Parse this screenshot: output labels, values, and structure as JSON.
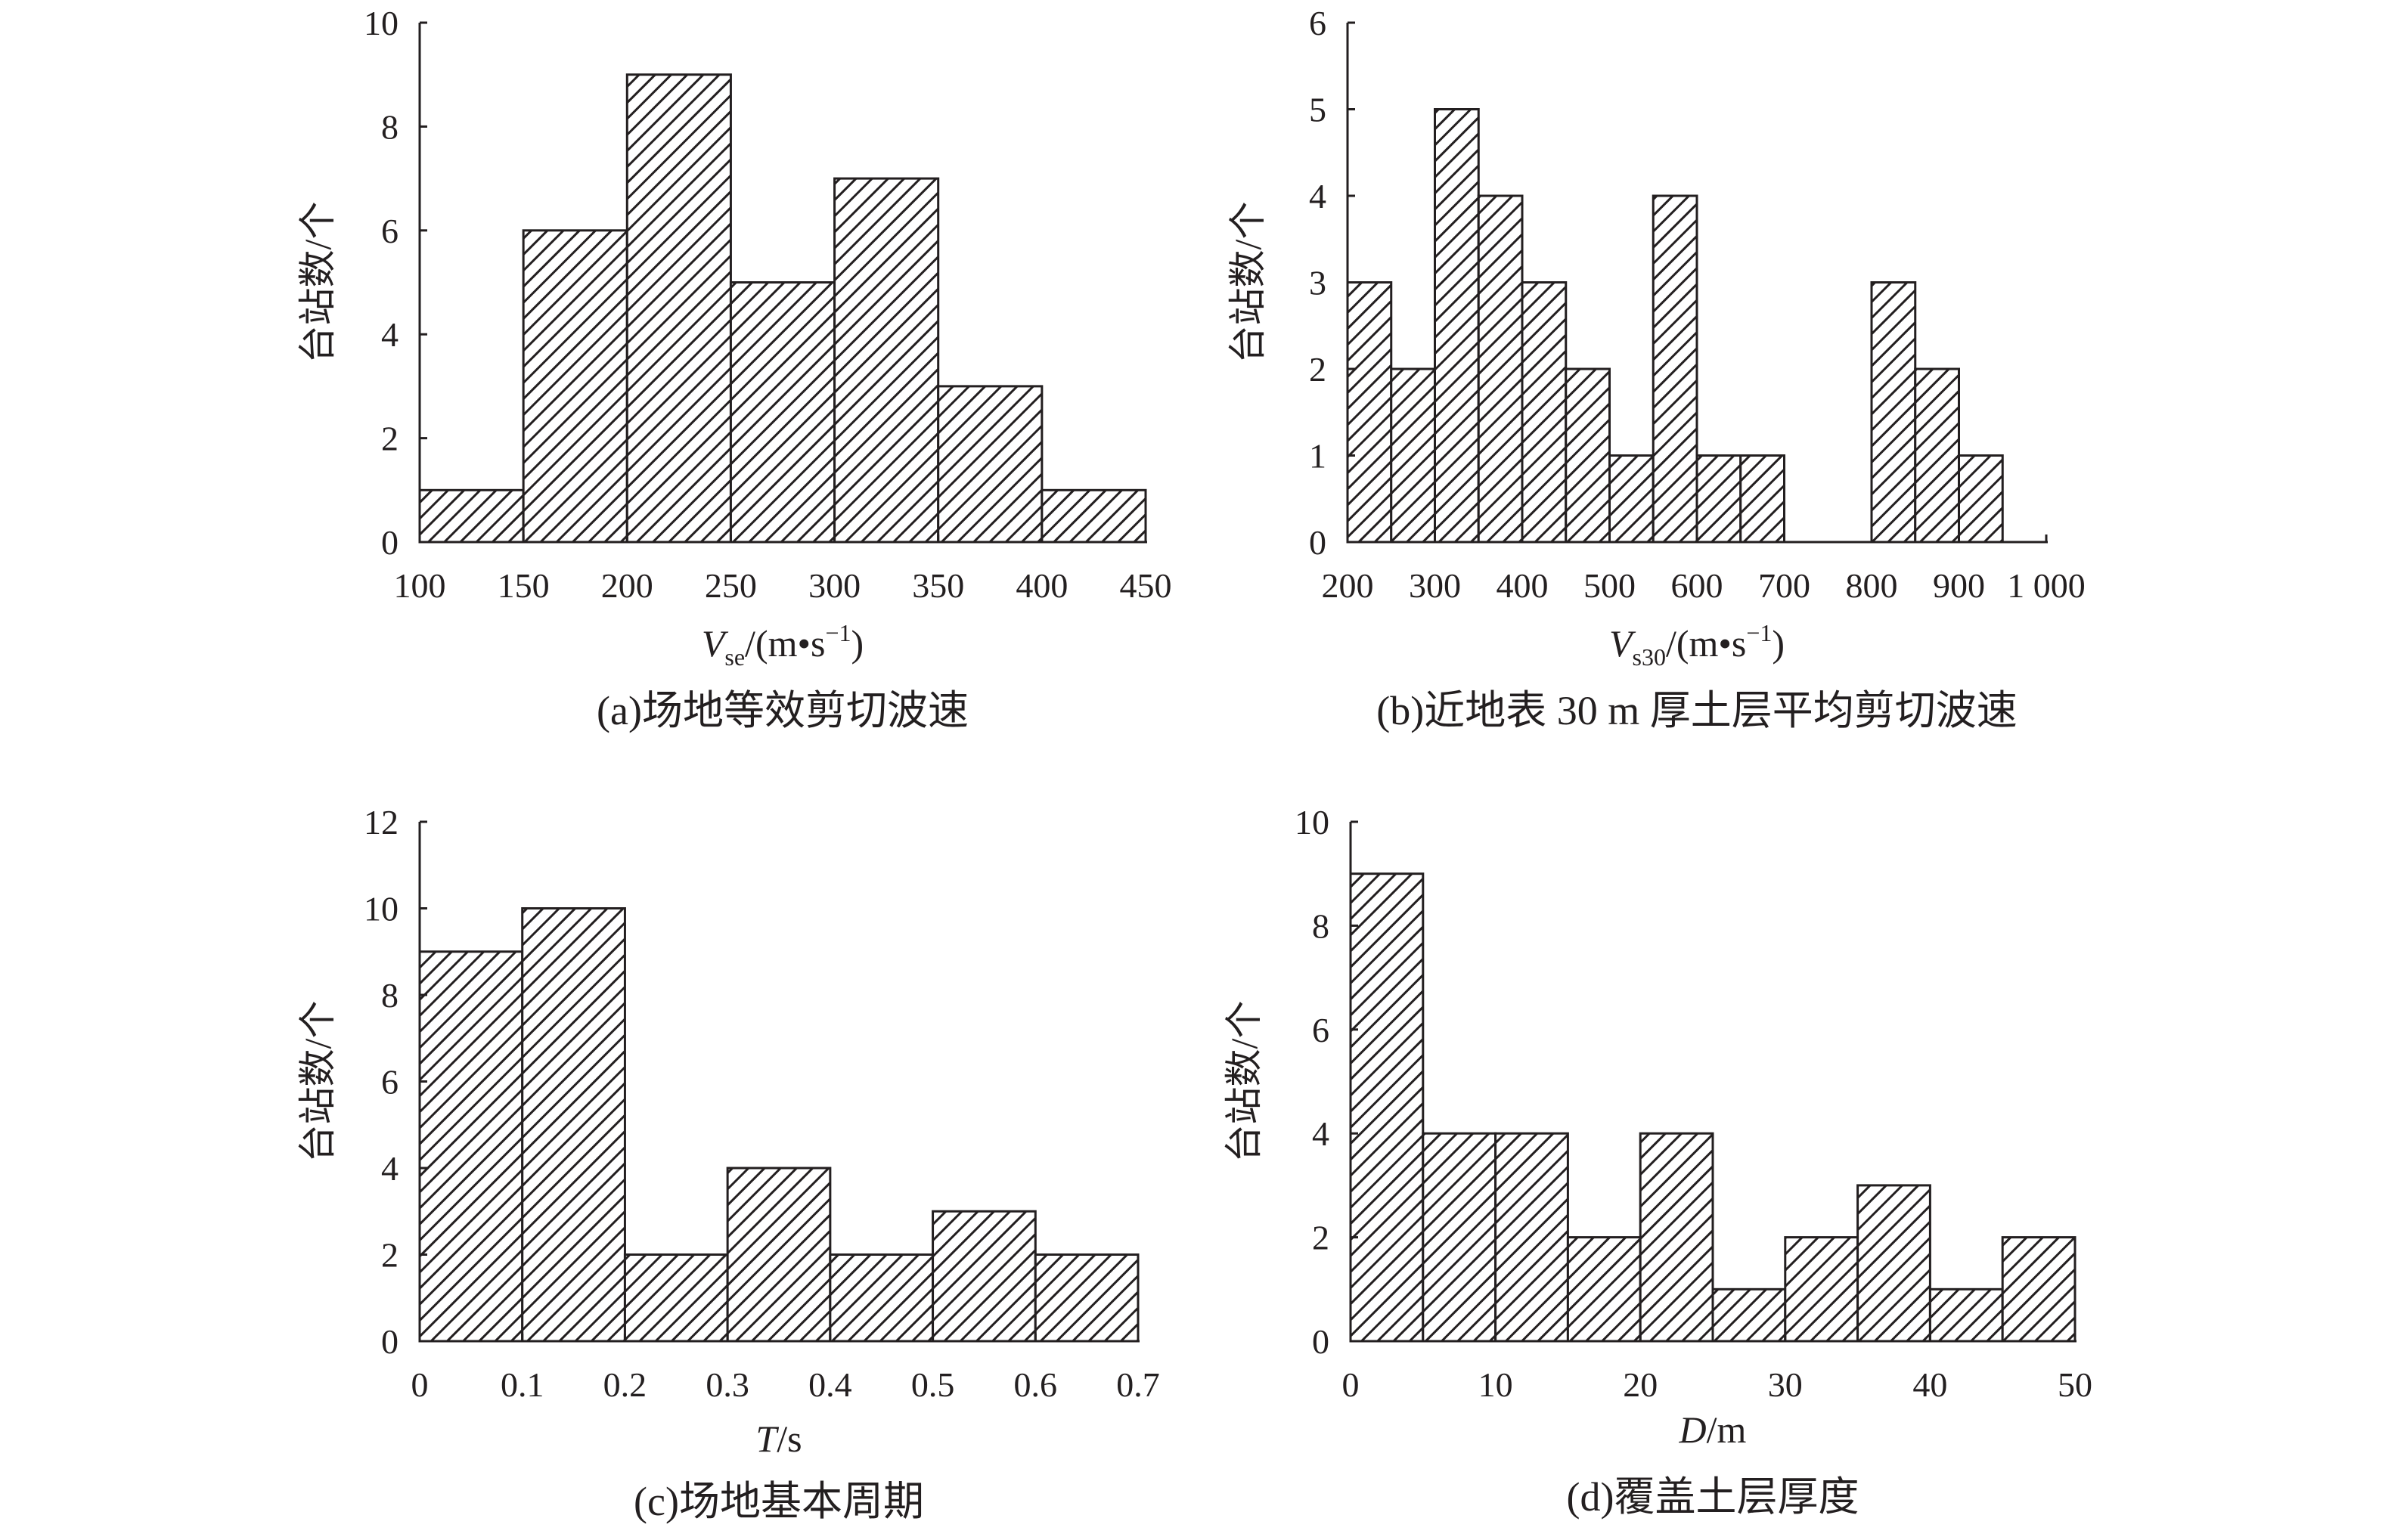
{
  "colors": {
    "ink": "#231f20",
    "background": "#ffffff"
  },
  "chart_data": [
    {
      "type": "bar",
      "title": "(a)场地等效剪切波速",
      "ylabel": "台站数/个",
      "xlabel": {
        "symbol": "V",
        "sub": "se",
        "text": "/(m•s",
        "sup": "−1",
        "end": ")"
      },
      "bin_edges": [
        100,
        150,
        200,
        250,
        300,
        350,
        400,
        450
      ],
      "values": [
        1,
        6,
        9,
        5,
        7,
        3,
        1
      ],
      "xlim": [
        100,
        450
      ],
      "ylim": [
        0,
        10
      ],
      "xticks": {
        "values": [
          100,
          150,
          200,
          250,
          300,
          350,
          400,
          450
        ],
        "labels": [
          "100",
          "150",
          "200",
          "250",
          "300",
          "350",
          "400",
          "450"
        ]
      },
      "yticks": {
        "values": [
          0,
          2,
          4,
          6,
          8,
          10
        ],
        "labels": [
          "0",
          "2",
          "4",
          "6",
          "8",
          "10"
        ]
      }
    },
    {
      "type": "bar",
      "title": "(b)近地表 30 m 厚土层平均剪切波速",
      "ylabel": "台站数/个",
      "xlabel": {
        "symbol": "V",
        "sub": "s30",
        "text": "/(m•s",
        "sup": "−1",
        "end": ")"
      },
      "bin_edges": [
        200,
        250,
        300,
        350,
        400,
        450,
        500,
        550,
        600,
        650,
        700,
        750,
        800,
        850,
        900,
        950,
        1000
      ],
      "values": [
        3,
        2,
        5,
        4,
        3,
        2,
        1,
        4,
        1,
        1,
        0,
        0,
        3,
        2,
        1,
        0
      ],
      "xlim": [
        200,
        1000
      ],
      "ylim": [
        0,
        6
      ],
      "xticks": {
        "values": [
          200,
          300,
          400,
          500,
          600,
          700,
          800,
          900,
          1000
        ],
        "labels": [
          "200",
          "300",
          "400",
          "500",
          "600",
          "700",
          "800",
          "900",
          "1 000"
        ]
      },
      "yticks": {
        "values": [
          0,
          1,
          2,
          3,
          4,
          5,
          6
        ],
        "labels": [
          "0",
          "1",
          "2",
          "3",
          "4",
          "5",
          "6"
        ]
      }
    },
    {
      "type": "bar",
      "title": "(c)场地基本周期",
      "ylabel": "台站数/个",
      "xlabel": {
        "symbol": "T",
        "text": "/s"
      },
      "bin_edges": [
        0,
        0.1,
        0.2,
        0.3,
        0.4,
        0.5,
        0.6,
        0.7
      ],
      "values": [
        9,
        10,
        2,
        4,
        2,
        3,
        2
      ],
      "xlim": [
        0,
        0.7
      ],
      "ylim": [
        0,
        12
      ],
      "xticks": {
        "values": [
          0,
          0.1,
          0.2,
          0.3,
          0.4,
          0.5,
          0.6,
          0.7
        ],
        "labels": [
          "0",
          "0.1",
          "0.2",
          "0.3",
          "0.4",
          "0.5",
          "0.6",
          "0.7"
        ]
      },
      "yticks": {
        "values": [
          0,
          2,
          4,
          6,
          8,
          10,
          12
        ],
        "labels": [
          "0",
          "2",
          "4",
          "6",
          "8",
          "10",
          "12"
        ]
      }
    },
    {
      "type": "bar",
      "title": "(d)覆盖土层厚度",
      "ylabel": "台站数/个",
      "xlabel": {
        "symbol": "D",
        "text": "/m"
      },
      "bin_edges": [
        0,
        5,
        10,
        15,
        20,
        25,
        30,
        35,
        40,
        45,
        50
      ],
      "values": [
        9,
        4,
        4,
        2,
        4,
        1,
        2,
        3,
        1,
        2
      ],
      "xlim": [
        0,
        50
      ],
      "ylim": [
        0,
        10
      ],
      "xticks": {
        "values": [
          0,
          10,
          20,
          30,
          40,
          50
        ],
        "labels": [
          "0",
          "10",
          "20",
          "30",
          "40",
          "50"
        ]
      },
      "yticks": {
        "values": [
          0,
          2,
          4,
          6,
          8,
          10
        ],
        "labels": [
          "0",
          "2",
          "4",
          "6",
          "8",
          "10"
        ]
      }
    }
  ]
}
